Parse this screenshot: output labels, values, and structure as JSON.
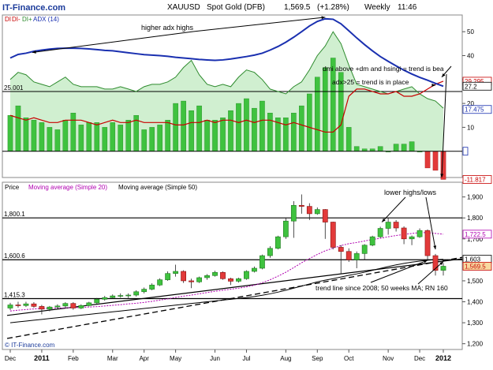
{
  "header": {
    "brand": "IT-Finance.com",
    "symbol": "XAUUSD",
    "instrument": "Spot Gold (DFB)",
    "last": "1,569.5",
    "change": "(+1.28%)",
    "timeframe": "Weekly",
    "time": "11:46"
  },
  "footer_brand": "© IT-Finance.com",
  "colors": {
    "adx": "#1a30b0",
    "di_plus": "#2e8b2e",
    "di_minus": "#c80000",
    "ma20": "#b000b0",
    "ma50": "#000000",
    "bull": "#3fc23f",
    "bear": "#e23a3a"
  },
  "chart_data": [
    {
      "type": "bar",
      "panel": "indicator",
      "legend": [
        "DI",
        "DI-",
        "DI+",
        "ADX (14)"
      ],
      "y_ticks": [
        10,
        20,
        30,
        40,
        50
      ],
      "ylim": [
        -10,
        56
      ],
      "hlines": [
        {
          "value": 25,
          "label": "25.001"
        },
        {
          "value": 0,
          "label": ""
        }
      ],
      "right_labels": [
        {
          "value": 29.295,
          "text": "29.295",
          "color": "#c80000"
        },
        {
          "value": 27.2,
          "text": "27.2",
          "color": "#000000"
        },
        {
          "value": 17.475,
          "text": "17.475",
          "color": "#1a30b0"
        },
        {
          "value": -11.817,
          "text": "-11.817",
          "color": "#c80000"
        }
      ],
      "adx": [
        39,
        40.5,
        41,
        41.8,
        42.3,
        42.7,
        43,
        43.1,
        43.1,
        43,
        42.8,
        42.5,
        42.2,
        42,
        41.6,
        41.2,
        40.8,
        40.4,
        40.2,
        40,
        39.7,
        39.3,
        39,
        38.7,
        38.4,
        38.2,
        38,
        38.2,
        38.6,
        39.1,
        39.6,
        40.2,
        41,
        42.3,
        43.8,
        45.6,
        47.7,
        50,
        52.4,
        54.3,
        55.4,
        55.2,
        53.3,
        50.4,
        47.4,
        44.6,
        42,
        39.6,
        37.6,
        35.7,
        33.9,
        32.3,
        30.9,
        29.7,
        28.4,
        27.2
      ],
      "di_plus": [
        30,
        33,
        32,
        29,
        28,
        27,
        29,
        31,
        28,
        27,
        27,
        27,
        26,
        26,
        27,
        26,
        25,
        27,
        28,
        28,
        29,
        31,
        35,
        38,
        32,
        28,
        27,
        28,
        27,
        31,
        34,
        33,
        30,
        26,
        25,
        24,
        27,
        29,
        34,
        40,
        44,
        50,
        45,
        36,
        28,
        27,
        26,
        25,
        24,
        25,
        26,
        27,
        24,
        22,
        21,
        18
      ],
      "di_minus": [
        15,
        14,
        13,
        14,
        13,
        12,
        12,
        13,
        13,
        13,
        12,
        11,
        12,
        13,
        12,
        12,
        13,
        12,
        12,
        12,
        12,
        11,
        11,
        12,
        12,
        13,
        12,
        13,
        13,
        12,
        13,
        12,
        13,
        13,
        12,
        11,
        12,
        11,
        10,
        9,
        8,
        8,
        11,
        23,
        26,
        26,
        25,
        24,
        24,
        25,
        23,
        23,
        24,
        26,
        28,
        29.3
      ],
      "histogram": [
        15,
        19,
        14,
        13,
        12,
        10,
        9,
        13,
        16,
        11,
        12,
        12,
        10,
        12,
        11,
        13,
        15,
        9,
        10,
        11,
        13,
        20,
        21,
        17,
        19,
        13,
        13,
        14,
        17,
        20,
        22,
        18,
        21,
        16,
        14,
        14,
        16,
        19,
        24,
        31,
        35,
        39,
        33,
        10,
        2,
        1,
        1,
        2,
        0,
        3,
        3,
        4,
        0,
        -7,
        -8,
        -11.8
      ]
    },
    {
      "type": "candlestick",
      "panel": "price",
      "legend": [
        "Price",
        "Moving average (Simple 20)",
        "Moving average (Simple 50)"
      ],
      "y_ticks": [
        1200,
        1300,
        1400,
        1500,
        1600,
        1700,
        1800,
        1900
      ],
      "ylim": [
        1180,
        1925
      ],
      "x_labels": [
        "Dec",
        "2011",
        "Feb",
        "Mar",
        "Apr",
        "May",
        "Jun",
        "Jul",
        "Aug",
        "Sep",
        "Oct",
        "Nov",
        "Dec",
        "2012"
      ],
      "hlines": [
        {
          "value": 1800.1,
          "label": "1,800.1"
        },
        {
          "value": 1600.6,
          "label": "1,600.6"
        },
        {
          "value": 1415.3,
          "label": "1,415.3"
        }
      ],
      "right_labels": [
        {
          "value": 1722.5,
          "text": "1,722.5",
          "color": "#b000b0"
        },
        {
          "value": 1603,
          "text": "1,603",
          "color": "#000000"
        },
        {
          "value": 1569.5,
          "text": "1,569.5",
          "color": "#c80000"
        }
      ],
      "open": [
        1370,
        1385,
        1382,
        1390,
        1378,
        1365,
        1375,
        1380,
        1392,
        1370,
        1382,
        1395,
        1412,
        1420,
        1428,
        1430,
        1432,
        1448,
        1460,
        1480,
        1505,
        1535,
        1545,
        1500,
        1495,
        1515,
        1525,
        1540,
        1510,
        1498,
        1510,
        1545,
        1560,
        1620,
        1655,
        1710,
        1785,
        1860,
        1855,
        1820,
        1840,
        1780,
        1660,
        1640,
        1600,
        1630,
        1670,
        1710,
        1750,
        1780,
        1752,
        1700,
        1710,
        1740,
        1620,
        1550
      ],
      "close": [
        1385,
        1382,
        1390,
        1378,
        1365,
        1375,
        1380,
        1392,
        1370,
        1382,
        1395,
        1412,
        1420,
        1428,
        1430,
        1432,
        1448,
        1460,
        1480,
        1505,
        1535,
        1545,
        1500,
        1495,
        1515,
        1525,
        1540,
        1510,
        1498,
        1510,
        1545,
        1560,
        1620,
        1655,
        1710,
        1785,
        1860,
        1855,
        1820,
        1840,
        1780,
        1660,
        1640,
        1600,
        1630,
        1670,
        1710,
        1750,
        1780,
        1752,
        1700,
        1710,
        1740,
        1620,
        1550,
        1569.5
      ],
      "high": [
        1395,
        1400,
        1400,
        1398,
        1385,
        1380,
        1388,
        1398,
        1398,
        1388,
        1400,
        1418,
        1428,
        1435,
        1440,
        1440,
        1455,
        1468,
        1488,
        1512,
        1545,
        1577,
        1550,
        1510,
        1520,
        1532,
        1548,
        1545,
        1515,
        1515,
        1550,
        1568,
        1625,
        1665,
        1715,
        1800,
        1880,
        1912,
        1870,
        1850,
        1842,
        1782,
        1670,
        1655,
        1640,
        1675,
        1715,
        1758,
        1802,
        1790,
        1760,
        1716,
        1750,
        1745,
        1628,
        1585
      ],
      "low": [
        1360,
        1372,
        1375,
        1372,
        1340,
        1355,
        1365,
        1372,
        1362,
        1365,
        1378,
        1390,
        1405,
        1415,
        1420,
        1418,
        1425,
        1440,
        1455,
        1475,
        1500,
        1520,
        1490,
        1465,
        1490,
        1505,
        1520,
        1505,
        1480,
        1492,
        1505,
        1540,
        1555,
        1610,
        1650,
        1700,
        1705,
        1820,
        1790,
        1815,
        1700,
        1650,
        1532,
        1590,
        1560,
        1600,
        1665,
        1705,
        1720,
        1735,
        1675,
        1670,
        1705,
        1600,
        1525,
        1525
      ],
      "ma20": [
        1356,
        1360,
        1363,
        1366,
        1368,
        1369,
        1370,
        1371,
        1372,
        1373,
        1375,
        1377,
        1380,
        1383,
        1386,
        1390,
        1393,
        1397,
        1402,
        1408,
        1414,
        1421,
        1427,
        1432,
        1438,
        1444,
        1450,
        1455,
        1460,
        1465,
        1471,
        1479,
        1491,
        1505,
        1522,
        1541,
        1563,
        1586,
        1606,
        1626,
        1643,
        1656,
        1668,
        1677,
        1683,
        1690,
        1697,
        1703,
        1710,
        1716,
        1721,
        1726,
        1730,
        1730,
        1726,
        1722.5
      ],
      "ma50": [
        1300,
        1304,
        1308,
        1312,
        1316,
        1320,
        1324,
        1328,
        1332,
        1336,
        1340,
        1344,
        1348,
        1352,
        1356,
        1360,
        1364,
        1368,
        1372,
        1376,
        1380,
        1384,
        1388,
        1392,
        1396,
        1400,
        1404,
        1408,
        1412,
        1416,
        1420,
        1425,
        1431,
        1438,
        1446,
        1455,
        1465,
        1475,
        1485,
        1495,
        1503,
        1510,
        1518,
        1526,
        1533,
        1541,
        1550,
        1559,
        1568,
        1576,
        1583,
        1589,
        1594,
        1598,
        1601,
        1603
      ]
    }
  ],
  "annotations": {
    "higher_adx_highs": "higher adx highs",
    "dmi_above": "dmi above +dm and hsingi = trend is bea",
    "adx_25": "adx>25 = trend is in place",
    "lower_highs": "lower highs/lows",
    "trend_line": "trend line since 2008; 50 weeks MA; RN 160"
  }
}
